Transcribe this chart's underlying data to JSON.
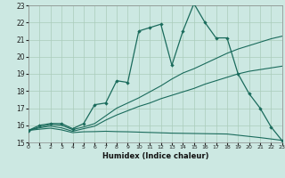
{
  "xlabel": "Humidex (Indice chaleur)",
  "bg_color": "#cce8e2",
  "grid_color": "#aaccbb",
  "line_color": "#1a6b5c",
  "xlim": [
    0,
    23
  ],
  "ylim": [
    15,
    23
  ],
  "xticks": [
    0,
    1,
    2,
    3,
    4,
    5,
    6,
    7,
    8,
    9,
    10,
    11,
    12,
    13,
    14,
    15,
    16,
    17,
    18,
    19,
    20,
    21,
    22,
    23
  ],
  "yticks": [
    15,
    16,
    17,
    18,
    19,
    20,
    21,
    22,
    23
  ],
  "main_x": [
    0,
    1,
    2,
    3,
    4,
    5,
    6,
    7,
    8,
    9,
    10,
    11,
    12,
    13,
    14,
    15,
    16,
    17,
    18,
    19,
    20,
    21,
    22,
    23
  ],
  "main_y": [
    15.7,
    16.0,
    16.1,
    16.1,
    15.8,
    16.1,
    17.2,
    17.3,
    18.6,
    18.5,
    21.5,
    21.7,
    21.9,
    19.5,
    21.5,
    23.1,
    22.0,
    21.1,
    21.1,
    19.0,
    17.85,
    17.0,
    15.9,
    15.1
  ],
  "line2_x": [
    0,
    1,
    2,
    3,
    4,
    5,
    6,
    7,
    8,
    9,
    10,
    11,
    12,
    13,
    14,
    15,
    16,
    17,
    18,
    19,
    20,
    21,
    22,
    23
  ],
  "line2_y": [
    15.7,
    15.9,
    16.05,
    16.0,
    15.75,
    15.9,
    16.1,
    16.55,
    17.0,
    17.3,
    17.6,
    17.95,
    18.3,
    18.7,
    19.05,
    19.3,
    19.6,
    19.9,
    20.2,
    20.45,
    20.65,
    20.85,
    21.05,
    21.2
  ],
  "line3_x": [
    0,
    1,
    2,
    3,
    4,
    5,
    6,
    7,
    8,
    9,
    10,
    11,
    12,
    13,
    14,
    15,
    16,
    17,
    18,
    19,
    20,
    21,
    22,
    23
  ],
  "line3_y": [
    15.7,
    15.85,
    15.95,
    15.85,
    15.65,
    15.8,
    15.95,
    16.3,
    16.6,
    16.85,
    17.1,
    17.3,
    17.55,
    17.75,
    17.95,
    18.15,
    18.4,
    18.6,
    18.8,
    19.0,
    19.15,
    19.25,
    19.35,
    19.45
  ],
  "line4_x": [
    0,
    1,
    2,
    3,
    4,
    5,
    6,
    7,
    8,
    9,
    10,
    11,
    12,
    13,
    14,
    15,
    16,
    17,
    18,
    19,
    20,
    21,
    22,
    23
  ],
  "line4_y": [
    15.7,
    15.77,
    15.83,
    15.73,
    15.57,
    15.62,
    15.63,
    15.65,
    15.63,
    15.62,
    15.6,
    15.58,
    15.56,
    15.54,
    15.53,
    15.52,
    15.51,
    15.5,
    15.49,
    15.42,
    15.35,
    15.28,
    15.2,
    15.12
  ]
}
